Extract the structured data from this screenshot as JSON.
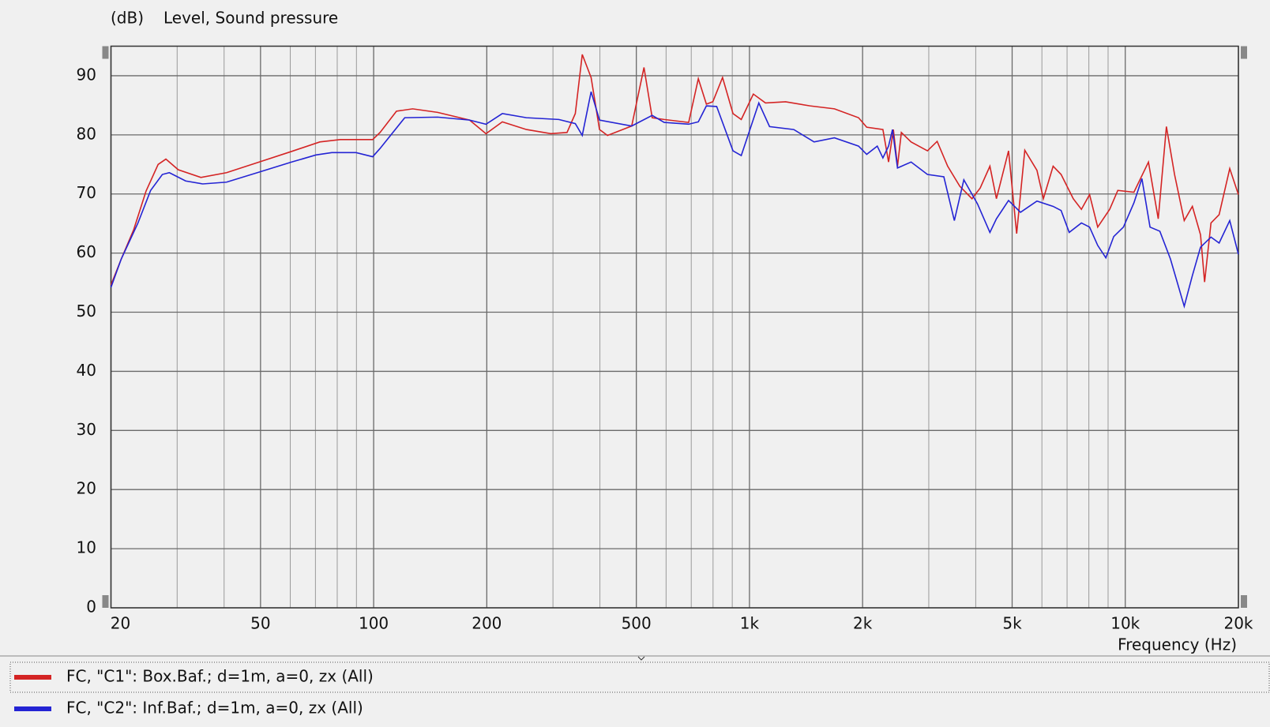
{
  "chart_data": {
    "type": "line",
    "title": "Level, Sound pressure",
    "y_unit": "(dB)",
    "x_label": "Frequency  (Hz)",
    "x_scale": "log",
    "xlim": [
      20,
      20000
    ],
    "xticks": [
      20,
      50,
      100,
      200,
      500,
      {
        "value": 1000,
        "label": "1k"
      },
      {
        "value": 2000,
        "label": "2k"
      },
      {
        "value": 5000,
        "label": "5k"
      },
      {
        "value": 10000,
        "label": "10k"
      },
      {
        "value": 20000,
        "label": "20k"
      }
    ],
    "x_minor_ticks": [
      30,
      40,
      60,
      70,
      80,
      90,
      300,
      400,
      600,
      700,
      800,
      900,
      3000,
      4000,
      6000,
      7000,
      8000,
      9000
    ],
    "ylim": [
      0,
      95
    ],
    "yticks": [
      0,
      10,
      20,
      30,
      40,
      50,
      60,
      70,
      80,
      90
    ],
    "grid": true,
    "legend": "bottom",
    "series": [
      {
        "name": "FC, \"C1\": Box.Baf.; d=1m, a=0, zx  (All)",
        "color": "#d42424",
        "x": [
          20,
          21.3,
          23,
          24.8,
          26.7,
          28,
          30.2,
          34.7,
          40.6,
          49.6,
          60.5,
          71.9,
          81.5,
          99.4,
          104,
          115,
          127,
          148,
          180,
          199,
          220,
          255,
          296,
          327,
          344,
          359,
          379,
          399,
          419,
          486,
          524,
          551,
          593,
          689,
          731,
          768,
          799,
          848,
          904,
          951,
          1024,
          1103,
          1248,
          1449,
          1683,
          1951,
          2051,
          2265,
          2345,
          2415,
          2477,
          2536,
          2692,
          2976,
          3158,
          3368,
          3629,
          3910,
          4111,
          4363,
          4541,
          4891,
          5140,
          5403,
          5821,
          6055,
          6427,
          6749,
          7271,
          7643,
          8035,
          8446,
          9088,
          9553,
          10544,
          11526,
          12238,
          12866,
          13524,
          14350,
          15085,
          15857,
          16258,
          16907,
          17772,
          18966,
          20000
        ],
        "values": [
          54.6,
          59,
          64,
          70.5,
          75,
          75.9,
          74.1,
          72.8,
          73.6,
          75.4,
          77.2,
          78.8,
          79.2,
          79.2,
          80.4,
          84,
          84.4,
          83.8,
          82.5,
          80.2,
          82.2,
          80.9,
          80.2,
          80.4,
          83.6,
          93.6,
          89.7,
          80.9,
          79.9,
          81.5,
          91.4,
          82.9,
          82.6,
          82.1,
          89.5,
          85.2,
          85.6,
          89.7,
          83.6,
          82.6,
          86.9,
          85.4,
          85.6,
          84.9,
          84.4,
          82.9,
          81.3,
          80.9,
          75.4,
          80.9,
          74.7,
          80.4,
          78.8,
          77.3,
          78.9,
          74.7,
          71.3,
          69.2,
          71.0,
          74.7,
          69.2,
          77.3,
          63.3,
          77.4,
          74.0,
          69.2,
          74.7,
          73.3,
          69.2,
          67.4,
          69.9,
          64.4,
          67.4,
          70.6,
          70.3,
          75.4,
          65.8,
          81.4,
          73.3,
          65.5,
          67.9,
          63.1,
          55.1,
          65.1,
          66.5,
          74.3,
          69.9
        ]
      },
      {
        "name": "FC, \"C2\": Inf.Baf.; d=1m, a=0, zx (All)",
        "color": "#2424d4",
        "x": [
          20,
          21.3,
          23.6,
          25.5,
          27.4,
          28.6,
          31.6,
          35.1,
          40.6,
          49.6,
          60.5,
          70.2,
          77.4,
          89.8,
          99.4,
          104,
          121,
          148,
          180,
          199,
          220,
          255,
          311,
          344,
          359,
          379,
          399,
          486,
          551,
          593,
          689,
          731,
          768,
          818,
          904,
          951,
          1059,
          1131,
          1312,
          1486,
          1683,
          1951,
          2051,
          2188,
          2265,
          2345,
          2402,
          2477,
          2692,
          2976,
          3290,
          3509,
          3719,
          4045,
          4363,
          4541,
          4891,
          5263,
          5821,
          6427,
          6749,
          7093,
          7643,
          8035,
          8446,
          8878,
          9317,
          9888,
          10544,
          11072,
          11637,
          12359,
          13188,
          14350,
          15085,
          15857,
          16907,
          17772,
          18966,
          20000
        ],
        "values": [
          54.2,
          59,
          65.1,
          70.6,
          73.3,
          73.6,
          72.2,
          71.7,
          72,
          73.7,
          75.4,
          76.6,
          77,
          77,
          76.3,
          77.7,
          82.9,
          83,
          82.5,
          81.8,
          83.6,
          82.9,
          82.6,
          81.9,
          79.9,
          87.3,
          82.5,
          81.5,
          83.3,
          82.1,
          81.8,
          82.2,
          84.9,
          84.8,
          77.3,
          76.5,
          85.4,
          81.4,
          80.9,
          78.8,
          79.5,
          78.1,
          76.7,
          78.1,
          76.1,
          78.1,
          80.9,
          74.4,
          75.4,
          73.3,
          72.9,
          65.5,
          72.4,
          68.3,
          63.5,
          65.8,
          68.9,
          66.9,
          68.8,
          67.9,
          67.2,
          63.5,
          65.1,
          64.4,
          61.3,
          59.2,
          62.8,
          64.4,
          68.5,
          72.6,
          64.4,
          63.7,
          59.0,
          51.0,
          56.2,
          61.0,
          62.7,
          61.7,
          65.5,
          59.8
        ]
      }
    ]
  }
}
